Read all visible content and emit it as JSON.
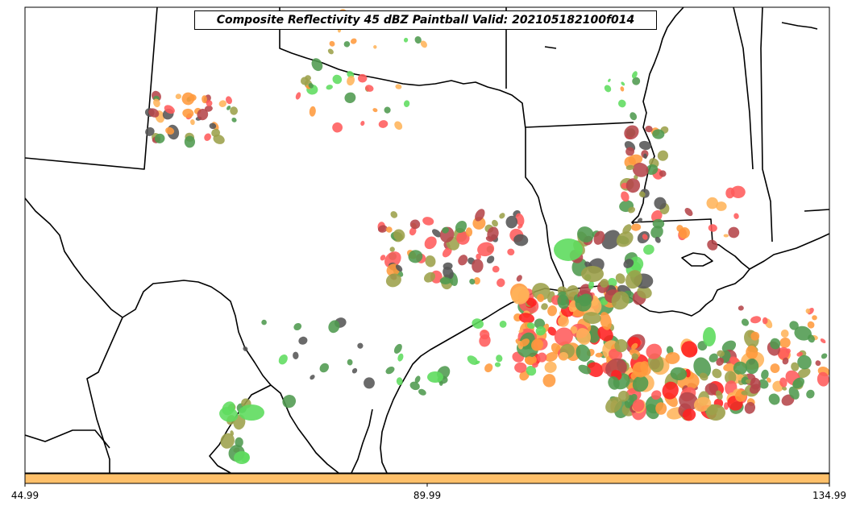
{
  "title": "Composite Reflectivity 45 dBZ Paintball Valid: 202105182100f014",
  "colorbar": {
    "color": "#ffc06a",
    "ticks": [
      "44.99",
      "89.99",
      "134.99"
    ]
  },
  "colors": {
    "land_outline": "#000000",
    "background": "#ffffff"
  },
  "paintball_palette": [
    {
      "name": "red",
      "color": "#ff5b5b"
    },
    {
      "name": "dark-red",
      "color": "#b5464a"
    },
    {
      "name": "orange",
      "color": "#ff9a3c"
    },
    {
      "name": "light-orange",
      "color": "#ffb45a"
    },
    {
      "name": "bright-green",
      "color": "#5edc5e"
    },
    {
      "name": "dark-green",
      "color": "#4f9a4f"
    },
    {
      "name": "olive",
      "color": "#9ca04a"
    },
    {
      "name": "dark-gray",
      "color": "#555555"
    },
    {
      "name": "bright-red",
      "color": "#ff2020"
    }
  ]
}
